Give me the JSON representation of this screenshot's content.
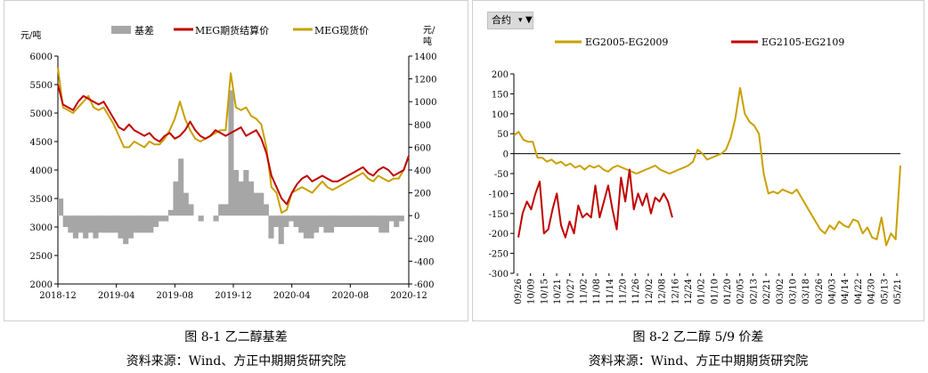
{
  "captions": {
    "left_title": "图 8-1  乙二醇基差",
    "left_source": "资料来源：Wind、方正中期期货研究院",
    "right_title": "图 8-2  乙二醇 5/9 价差",
    "right_source": "资料来源：Wind、方正中期期货研究院"
  },
  "filter": {
    "label": "合约"
  },
  "colors": {
    "basis": "#a6a6a6",
    "settle": "#c00000",
    "spot": "#c9a000"
  },
  "chart_data": [
    {
      "type": "line",
      "ylabel_left": "元/吨",
      "ylabel_right": "元/吨",
      "ylim_left": [
        2000,
        6000
      ],
      "ylim_right": [
        -600,
        1400
      ],
      "yticks_left": [
        "6000",
        "5500",
        "5000",
        "4500",
        "4000",
        "3500",
        "3000",
        "2500",
        "2000"
      ],
      "yticks_right": [
        "1400",
        "1200",
        "1000",
        "800",
        "600",
        "400",
        "200",
        "0",
        "-200",
        "-400",
        "-600"
      ],
      "xticks": [
        "2018-12",
        "2019-04",
        "2019-08",
        "2019-12",
        "2020-04",
        "2020-08",
        "2020-12"
      ],
      "legend": [
        "基差",
        "MEG期货结算价",
        "MEG现货价"
      ],
      "series": [
        {
          "name": "MEG期货结算价",
          "axis": "left",
          "values": [
            5500,
            5150,
            5100,
            5050,
            5200,
            5300,
            5250,
            5200,
            5150,
            5200,
            5050,
            4900,
            4750,
            4700,
            4800,
            4700,
            4650,
            4600,
            4650,
            4550,
            4500,
            4600,
            4650,
            4550,
            4600,
            4700,
            4850,
            4700,
            4600,
            4550,
            4600,
            4700,
            4650,
            4600,
            4650,
            4700,
            4750,
            4600,
            4650,
            4700,
            4550,
            4300,
            3900,
            3700,
            3500,
            3400,
            3600,
            3750,
            3850,
            3900,
            3800,
            3850,
            3900,
            3850,
            3800,
            3800,
            3850,
            3900,
            3950,
            4000,
            4050,
            3950,
            3900,
            4000,
            4050,
            4000,
            3900,
            3950,
            4000,
            4250
          ]
        },
        {
          "name": "MEG现货价",
          "axis": "left",
          "values": [
            5800,
            5100,
            5050,
            5000,
            5100,
            5200,
            5300,
            5100,
            5050,
            5100,
            4950,
            4800,
            4600,
            4400,
            4400,
            4500,
            4450,
            4400,
            4500,
            4450,
            4450,
            4550,
            4700,
            4900,
            5200,
            4900,
            4700,
            4550,
            4500,
            4550,
            4600,
            4650,
            4700,
            4700,
            5700,
            5100,
            5050,
            5100,
            4950,
            4900,
            4800,
            4400,
            3700,
            3600,
            3250,
            3300,
            3600,
            3650,
            3700,
            3650,
            3600,
            3700,
            3800,
            3700,
            3650,
            3700,
            3750,
            3800,
            3850,
            3900,
            3950,
            3850,
            3800,
            3900,
            3850,
            3800,
            3850,
            3850,
            4000,
            4250
          ]
        },
        {
          "name": "基差",
          "axis": "right",
          "type": "bar",
          "values": [
            150,
            -100,
            -150,
            -200,
            -150,
            -200,
            -150,
            -200,
            -150,
            -150,
            -150,
            -150,
            -200,
            -250,
            -200,
            -150,
            -150,
            -150,
            -150,
            -100,
            -50,
            -50,
            50,
            300,
            500,
            200,
            100,
            0,
            -50,
            0,
            0,
            -50,
            100,
            100,
            1100,
            400,
            300,
            400,
            300,
            200,
            200,
            100,
            -200,
            -100,
            -250,
            -100,
            -50,
            -100,
            -150,
            -200,
            -200,
            -150,
            -100,
            -150,
            -150,
            -100,
            -100,
            -100,
            -100,
            -100,
            -100,
            -100,
            -100,
            -100,
            -150,
            -150,
            -50,
            -100,
            -50,
            0
          ]
        }
      ]
    },
    {
      "type": "line",
      "ylim": [
        -300,
        200
      ],
      "yticks": [
        "200",
        "150",
        "100",
        "50",
        "0",
        "-50",
        "-100",
        "-150",
        "-200",
        "-250",
        "-300"
      ],
      "xticks": [
        "09/26",
        "10/09",
        "10/15",
        "10/21",
        "10/27",
        "11/02",
        "11/08",
        "11/14",
        "11/20",
        "11/26",
        "12/02",
        "12/08",
        "12/16",
        "12/24",
        "01/02",
        "01/10",
        "01/20",
        "02/05",
        "02/13",
        "02/21",
        "03/02",
        "03/10",
        "03/18",
        "03/26",
        "04/03",
        "04/14",
        "04/22",
        "04/30",
        "05/13",
        "05/21"
      ],
      "legend": [
        "EG2005-EG2009",
        "EG2105-EG2109"
      ],
      "series": [
        {
          "name": "EG2005-EG2009",
          "values": [
            45,
            55,
            35,
            30,
            30,
            -10,
            -10,
            -20,
            -15,
            -25,
            -20,
            -30,
            -25,
            -35,
            -30,
            -40,
            -30,
            -35,
            -30,
            -40,
            -45,
            -35,
            -30,
            -35,
            -40,
            -45,
            -50,
            -45,
            -40,
            -35,
            -30,
            -40,
            -45,
            -50,
            -45,
            -40,
            -35,
            -30,
            -20,
            10,
            0,
            -15,
            -10,
            -5,
            0,
            10,
            40,
            90,
            165,
            100,
            80,
            70,
            50,
            -50,
            -100,
            -95,
            -100,
            -90,
            -95,
            -100,
            -90,
            -110,
            -130,
            -150,
            -170,
            -190,
            -200,
            -180,
            -190,
            -170,
            -180,
            -185,
            -165,
            -170,
            -200,
            -185,
            -210,
            -215,
            -160,
            -230,
            -200,
            -215,
            -30
          ]
        },
        {
          "name": "EG2105-EG2109",
          "values": [
            -210,
            -150,
            -120,
            -140,
            -100,
            -70,
            -200,
            -190,
            -140,
            -100,
            -180,
            -210,
            -170,
            -200,
            -130,
            -160,
            -150,
            -160,
            -80,
            -160,
            -120,
            -80,
            -140,
            -190,
            -60,
            -120,
            -40,
            -140,
            -100,
            -130,
            -100,
            -150,
            -110,
            -120,
            -100,
            -120,
            -160
          ]
        }
      ]
    }
  ]
}
